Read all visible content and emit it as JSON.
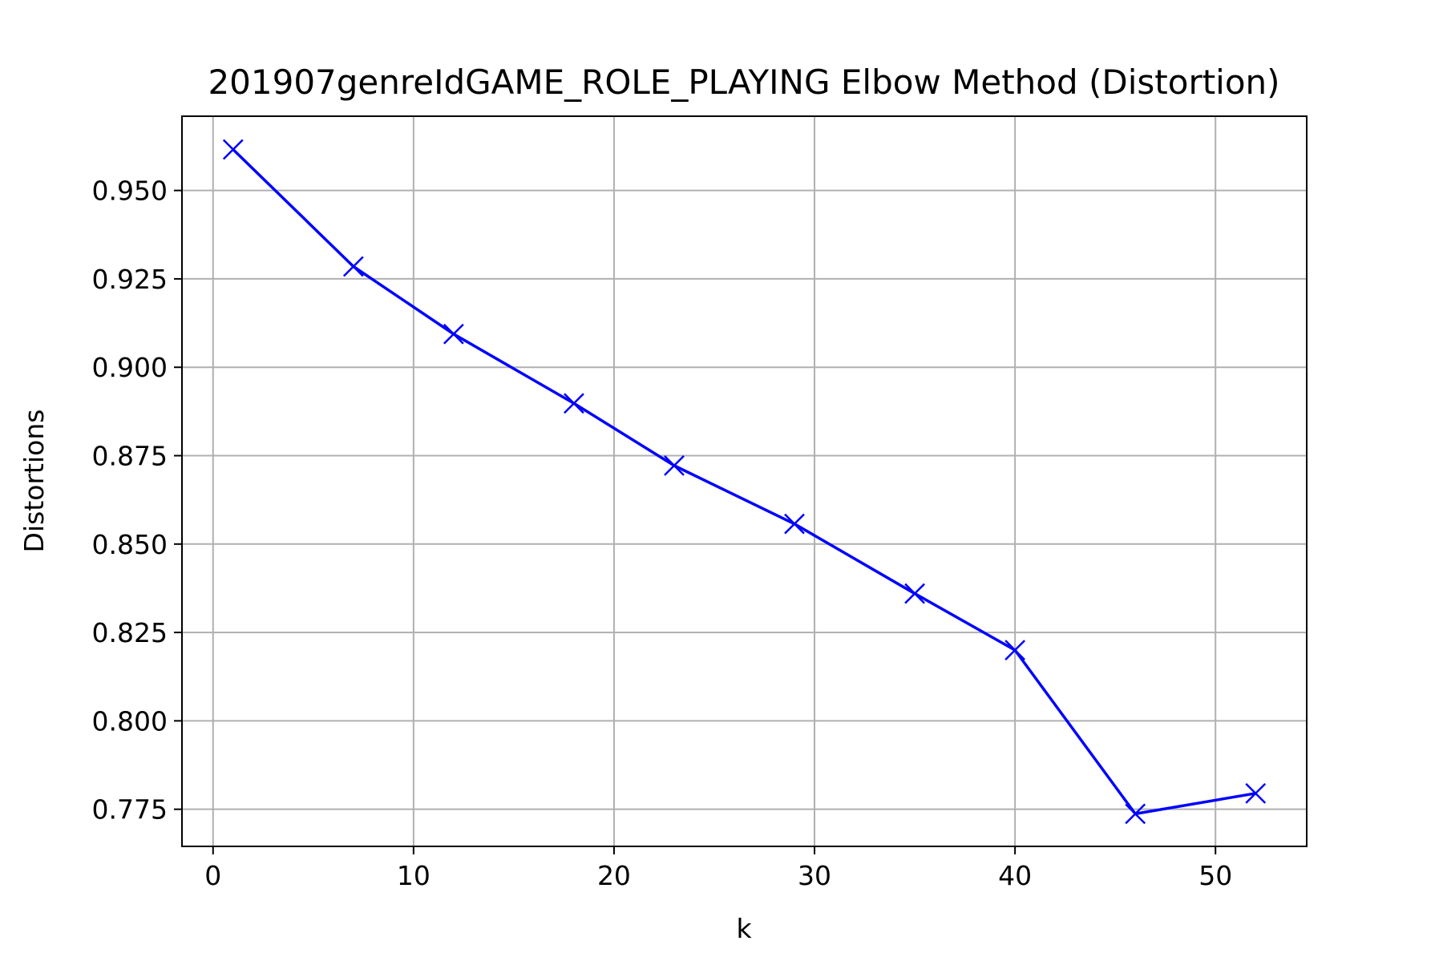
{
  "chart_data": {
    "type": "line",
    "title": "201907genreIdGAME_ROLE_PLAYING Elbow Method (Distortion)",
    "xlabel": "k",
    "ylabel": "Distortions",
    "xlim": [
      -1.55,
      54.55
    ],
    "ylim": [
      0.7645,
      0.971
    ],
    "grid": true,
    "legend": "none",
    "x_ticks": [
      0,
      10,
      20,
      30,
      40,
      50
    ],
    "x_tick_labels": [
      "0",
      "10",
      "20",
      "30",
      "40",
      "50"
    ],
    "y_ticks": [
      0.775,
      0.8,
      0.825,
      0.85,
      0.875,
      0.9,
      0.925,
      0.95
    ],
    "y_tick_labels": [
      "0.775",
      "0.800",
      "0.825",
      "0.850",
      "0.875",
      "0.900",
      "0.925",
      "0.950"
    ],
    "series": [
      {
        "color": "#0000ff",
        "marker": "x",
        "x": [
          1,
          7,
          12,
          18,
          23,
          29,
          35,
          40,
          46,
          52
        ],
        "y": [
          0.9616,
          0.9285,
          0.9094,
          0.8898,
          0.8722,
          0.8557,
          0.836,
          0.82,
          0.7737,
          0.7795
        ]
      }
    ]
  },
  "colors": {
    "grid": "#b0b0b0",
    "axes": "#000000",
    "background": "#ffffff"
  }
}
